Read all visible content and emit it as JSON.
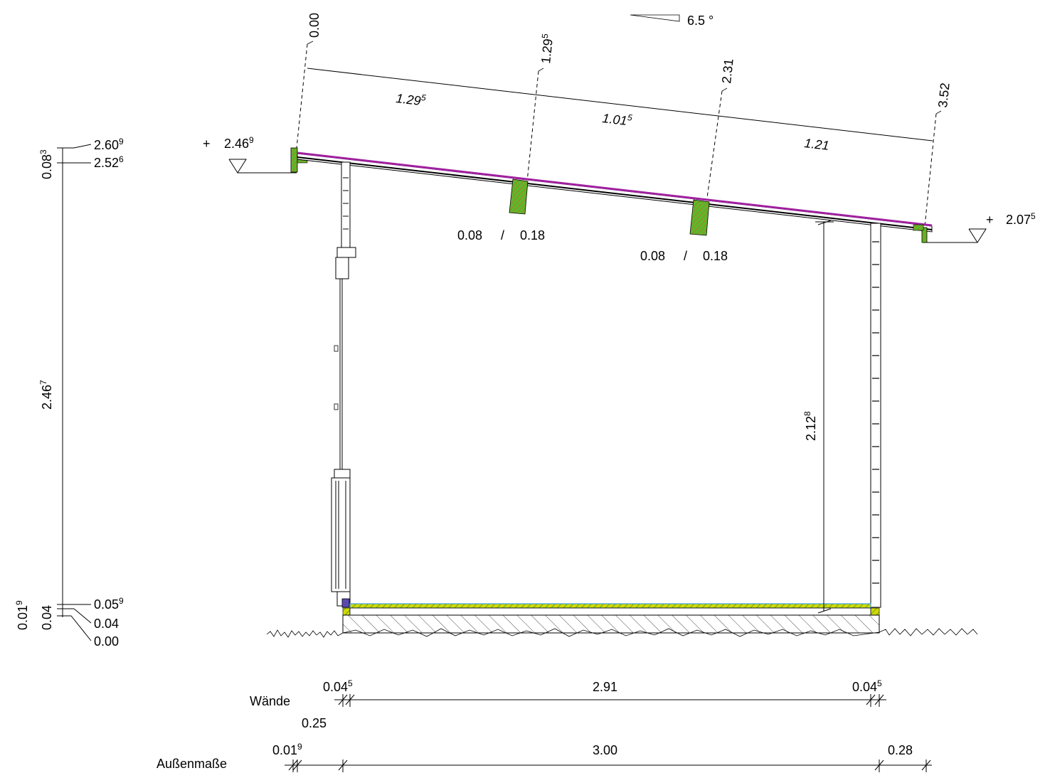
{
  "slope": {
    "label": "6.5 °"
  },
  "roof_dims": {
    "stations": [
      "0.00",
      "1.29",
      "2.31",
      "3.52"
    ],
    "station2_sup": "5",
    "segments": [
      {
        "base": "1.29",
        "sup": "5"
      },
      {
        "base": "1.01",
        "sup": "5"
      },
      {
        "base": "1.21",
        "sup": ""
      }
    ]
  },
  "levels": {
    "left_eave": {
      "prefix": "+",
      "base": "2.46",
      "sup": "9"
    },
    "right_eave": {
      "prefix": "+",
      "base": "2.07",
      "sup": "5"
    }
  },
  "rafters": [
    {
      "w": "0.08",
      "sep": "/",
      "h": "0.18"
    },
    {
      "w": "0.08",
      "sep": "/",
      "h": "0.18"
    }
  ],
  "height_dim": {
    "base": "2.12",
    "sup": "8"
  },
  "vertical_chain": {
    "top": {
      "base": "2.60",
      "sup": "9"
    },
    "second": {
      "base": "2.52",
      "sup": "6"
    },
    "seg_top": {
      "base": "0.08",
      "sup": "3"
    },
    "seg_main": {
      "base": "2.46",
      "sup": "7"
    },
    "seg_small1": {
      "base": "0.01",
      "sup": "9"
    },
    "seg_small2": {
      "base": "0.04",
      "sup": ""
    },
    "low1": {
      "base": "0.05",
      "sup": "9"
    },
    "low2": {
      "base": "0.04",
      "sup": ""
    },
    "low3": {
      "base": "0.00",
      "sup": ""
    }
  },
  "bottom_dims": {
    "walls": {
      "label": "Wände",
      "left": {
        "base": "0.04",
        "sup": "5"
      },
      "mid": "2.91",
      "right": {
        "base": "0.04",
        "sup": "5"
      },
      "under": "0.25"
    },
    "outer": {
      "label": "Außenmaße",
      "left": {
        "base": "0.01",
        "sup": "9"
      },
      "mid": "3.00",
      "right": "0.28"
    }
  },
  "colors": {
    "roof": "#a020a0",
    "timber": "#5bb82c",
    "timber_hatch": "#c07020",
    "insulation": "#3aa0e0",
    "floor_layer": "#d4d800"
  }
}
